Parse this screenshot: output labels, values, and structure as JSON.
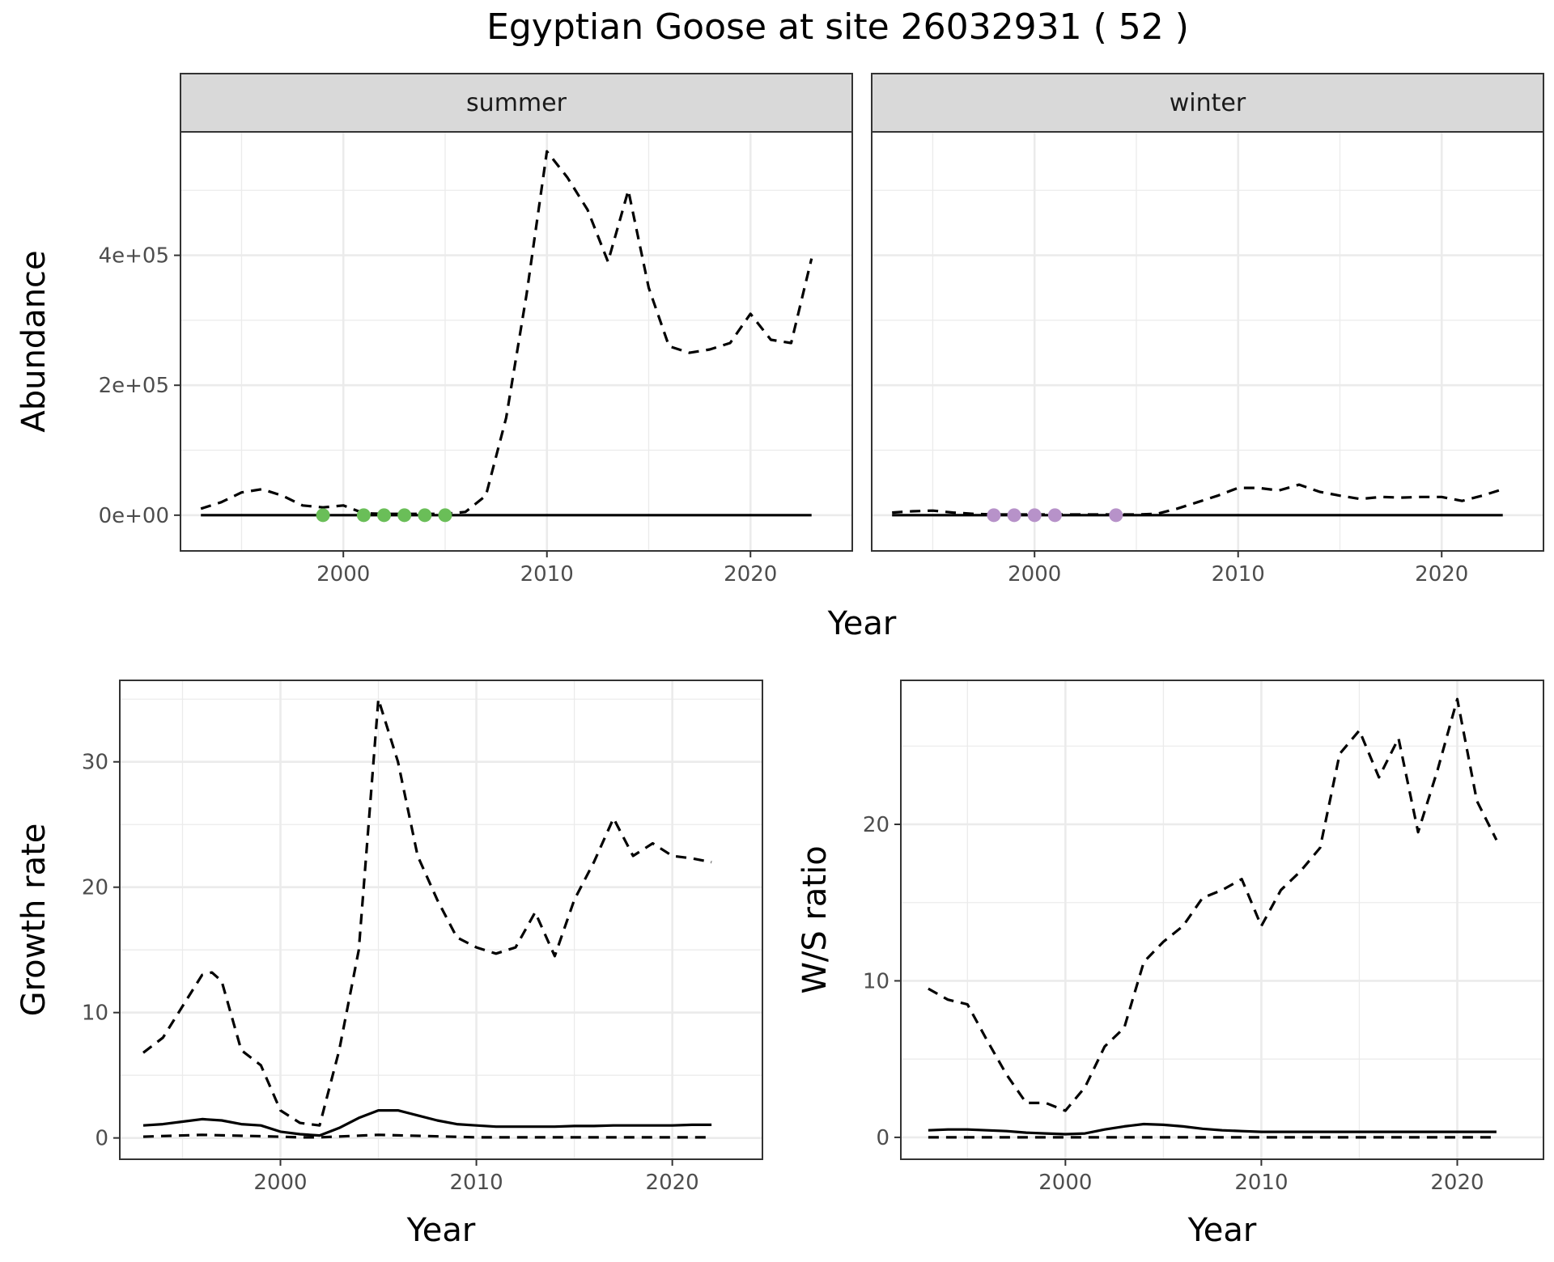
{
  "title": "Egyptian Goose at site 26032931 ( 52 )",
  "colors": {
    "summer_points": "#6ABE58",
    "winter_points": "#B792C9",
    "line": "#000000",
    "strip_bg": "#D9D9D9",
    "grid": "#EBEBEB"
  },
  "chart_data": [
    {
      "id": "abundance",
      "type": "line",
      "ylabel": "Abundance",
      "xlabel": "Year",
      "xlim": [
        1992,
        2025
      ],
      "ylim": [
        -55000,
        590000
      ],
      "x_ticks": [
        2000,
        2010,
        2020
      ],
      "x_tick_labels": [
        "2000",
        "2010",
        "2020"
      ],
      "y_ticks": [
        0,
        200000,
        400000
      ],
      "y_tick_labels": [
        "0e+00",
        "2e+05",
        "4e+05"
      ],
      "grid": true,
      "facets": [
        {
          "strip": "summer",
          "series": [
            {
              "style": "dashed",
              "x": [
                1993,
                1994,
                1995,
                1996,
                1997,
                1998,
                1999,
                2000,
                2001,
                2002,
                2003,
                2004,
                2005,
                2006,
                2007,
                2008,
                2009,
                2010,
                2011,
                2012,
                2013,
                2014,
                2015,
                2016,
                2017,
                2018,
                2019,
                2020,
                2021,
                2022,
                2023
              ],
              "y": [
                10000,
                20000,
                35000,
                40000,
                30000,
                15000,
                12000,
                15000,
                3000,
                2000,
                2000,
                2000,
                2000,
                5000,
                30000,
                150000,
                340000,
                560000,
                520000,
                470000,
                390000,
                500000,
                350000,
                260000,
                250000,
                255000,
                265000,
                310000,
                270000,
                265000,
                395000
              ]
            },
            {
              "style": "solid",
              "x": [
                1993,
                2005,
                2023
              ],
              "y": [
                0,
                0,
                0
              ]
            }
          ],
          "points": {
            "x": [
              1999,
              2001,
              2002,
              2003,
              2004,
              2005
            ],
            "y": [
              0,
              0,
              0,
              0,
              0,
              0
            ]
          }
        },
        {
          "strip": "winter",
          "series": [
            {
              "style": "dashed",
              "x": [
                1993,
                1994,
                1995,
                1996,
                1997,
                1998,
                1999,
                2000,
                2001,
                2002,
                2003,
                2004,
                2005,
                2006,
                2007,
                2008,
                2009,
                2010,
                2011,
                2012,
                2013,
                2014,
                2015,
                2016,
                2017,
                2018,
                2019,
                2020,
                2021,
                2022,
                2023
              ],
              "y": [
                4000,
                6000,
                7000,
                4000,
                2000,
                1000,
                1000,
                1000,
                1000,
                1000,
                1000,
                1000,
                1000,
                2000,
                10000,
                20000,
                30000,
                42000,
                42000,
                38000,
                47000,
                36000,
                30000,
                25000,
                28000,
                27000,
                28000,
                28000,
                22000,
                30000,
                40000
              ]
            },
            {
              "style": "solid",
              "x": [
                1993,
                2005,
                2023
              ],
              "y": [
                0,
                0,
                0
              ]
            }
          ],
          "points": {
            "x": [
              1998,
              1999,
              2000,
              2001,
              2004
            ],
            "y": [
              0,
              0,
              0,
              0,
              0
            ]
          }
        }
      ]
    },
    {
      "id": "growth",
      "type": "line",
      "ylabel": "Growth rate",
      "xlabel": "Year",
      "xlim": [
        1991.8,
        2024.6
      ],
      "ylim": [
        -1.7,
        36.5
      ],
      "x_ticks": [
        2000,
        2010,
        2020
      ],
      "x_tick_labels": [
        "2000",
        "2010",
        "2020"
      ],
      "y_ticks": [
        0,
        10,
        20,
        30
      ],
      "y_tick_labels": [
        "0",
        "10",
        "20",
        "30"
      ],
      "grid": true,
      "series": [
        {
          "style": "dashed",
          "x": [
            1993,
            1994,
            1995,
            1996,
            1996.5,
            1997,
            1998,
            1999,
            2000,
            2001,
            2002,
            2003,
            2004,
            2004.5,
            2005,
            2006,
            2007,
            2008,
            2009,
            2010,
            2011,
            2012,
            2013,
            2014,
            2015,
            2016,
            2017,
            2018,
            2019,
            2020,
            2021,
            2022
          ],
          "y": [
            6.8,
            8,
            10.5,
            13,
            13.2,
            12.5,
            7,
            5.8,
            2.2,
            1.2,
            1.0,
            7.0,
            15.0,
            25.0,
            35.0,
            30.0,
            22.5,
            19.0,
            16.0,
            15.2,
            14.7,
            15.2,
            18.0,
            14.5,
            19.0,
            22.0,
            25.5,
            22.5,
            23.5,
            22.5,
            22.3,
            22.0
          ]
        },
        {
          "style": "solid",
          "x": [
            1993,
            1994,
            1995,
            1996,
            1997,
            1998,
            1999,
            2000,
            2001,
            2002,
            2003,
            2004,
            2005,
            2006,
            2007,
            2008,
            2009,
            2010,
            2011,
            2012,
            2013,
            2014,
            2015,
            2016,
            2017,
            2018,
            2019,
            2020,
            2021,
            2022
          ],
          "y": [
            1.0,
            1.1,
            1.3,
            1.5,
            1.4,
            1.1,
            1.0,
            0.5,
            0.3,
            0.2,
            0.8,
            1.6,
            2.2,
            2.2,
            1.8,
            1.4,
            1.1,
            1.0,
            0.9,
            0.9,
            0.9,
            0.9,
            0.95,
            0.95,
            1.0,
            1.0,
            1.0,
            1.0,
            1.05,
            1.05
          ]
        },
        {
          "style": "dashed",
          "x": [
            1993,
            1996,
            2000,
            2001,
            2002,
            2005,
            2010,
            2022
          ],
          "y": [
            0.1,
            0.25,
            0.1,
            0.05,
            0.05,
            0.25,
            0.05,
            0.05
          ]
        }
      ]
    },
    {
      "id": "ratio",
      "type": "line",
      "ylabel": "W/S ratio",
      "xlabel": "Year",
      "xlim": [
        1991.6,
        2024.4
      ],
      "ylim": [
        -1.4,
        29.2
      ],
      "x_ticks": [
        2000,
        2010,
        2020
      ],
      "x_tick_labels": [
        "2000",
        "2010",
        "2020"
      ],
      "y_ticks": [
        0,
        10,
        20
      ],
      "y_tick_labels": [
        "0",
        "10",
        "20"
      ],
      "grid": true,
      "series": [
        {
          "style": "dashed",
          "x": [
            1993,
            1994,
            1995,
            1996,
            1997,
            1998,
            1999,
            2000,
            2001,
            2002,
            2003,
            2004,
            2005,
            2006,
            2007,
            2008,
            2009,
            2010,
            2011,
            2012,
            2013,
            2014,
            2015,
            2016,
            2017,
            2018,
            2019,
            2020,
            2021,
            2022
          ],
          "y": [
            9.5,
            8.8,
            8.5,
            6.2,
            4.0,
            2.2,
            2.2,
            1.7,
            3.2,
            5.8,
            7.0,
            11.2,
            12.5,
            13.5,
            15.3,
            15.8,
            16.5,
            13.5,
            15.8,
            17.0,
            18.5,
            24.5,
            26.0,
            23.0,
            25.5,
            19.5,
            23.5,
            28.0,
            21.5,
            19.0
          ]
        },
        {
          "style": "solid",
          "x": [
            1993,
            1994,
            1995,
            1996,
            1997,
            1998,
            1999,
            2000,
            2001,
            2002,
            2003,
            2004,
            2005,
            2006,
            2007,
            2008,
            2009,
            2010,
            2015,
            2022
          ],
          "y": [
            0.45,
            0.5,
            0.5,
            0.45,
            0.4,
            0.3,
            0.25,
            0.2,
            0.25,
            0.5,
            0.7,
            0.85,
            0.8,
            0.7,
            0.55,
            0.45,
            0.4,
            0.35,
            0.35,
            0.35
          ]
        },
        {
          "style": "dashed",
          "x": [
            1993,
            2022
          ],
          "y": [
            0.0,
            0.0
          ]
        }
      ]
    }
  ]
}
